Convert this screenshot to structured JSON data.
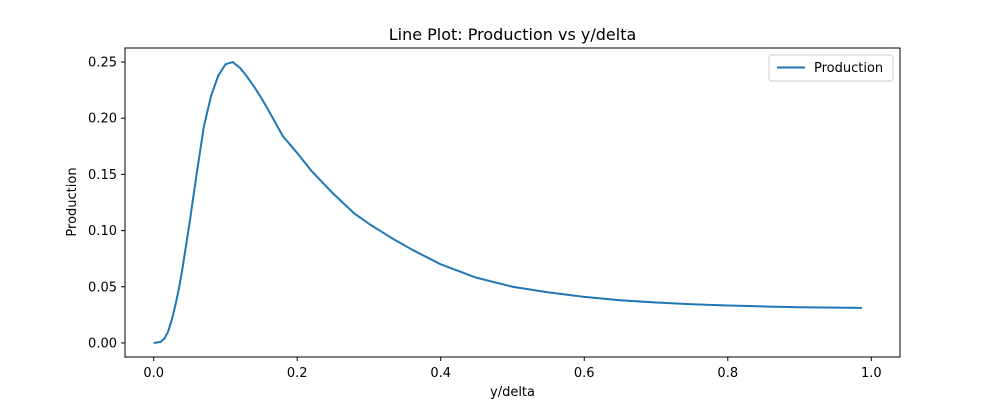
{
  "chart_data": {
    "type": "line",
    "title": "Line Plot: Production vs y/delta",
    "xlabel": "y/delta",
    "ylabel": "Production",
    "xlim": [
      -0.04,
      1.04
    ],
    "ylim": [
      -0.0125,
      0.2625
    ],
    "xticks": [
      0.0,
      0.2,
      0.4,
      0.6,
      0.8,
      1.0
    ],
    "xtick_labels": [
      "0.0",
      "0.2",
      "0.4",
      "0.6",
      "0.8",
      "1.0"
    ],
    "yticks": [
      0.0,
      0.05,
      0.1,
      0.15,
      0.2,
      0.25
    ],
    "ytick_labels": [
      "0.00",
      "0.05",
      "0.10",
      "0.15",
      "0.20",
      "0.25"
    ],
    "grid": false,
    "legend_position": "top-right",
    "colors": {
      "series": "#1f77b4",
      "axes": "#000000",
      "legend_border": "#cccccc"
    },
    "series": [
      {
        "name": "Production",
        "x": [
          0.0,
          0.01,
          0.015,
          0.02,
          0.025,
          0.03,
          0.035,
          0.04,
          0.05,
          0.06,
          0.07,
          0.08,
          0.09,
          0.1,
          0.11,
          0.12,
          0.13,
          0.14,
          0.15,
          0.16,
          0.18,
          0.2,
          0.22,
          0.25,
          0.28,
          0.3,
          0.33,
          0.36,
          0.4,
          0.45,
          0.5,
          0.55,
          0.6,
          0.65,
          0.7,
          0.75,
          0.8,
          0.85,
          0.9,
          0.95,
          0.987
        ],
        "y": [
          0.0,
          0.001,
          0.004,
          0.01,
          0.02,
          0.033,
          0.048,
          0.066,
          0.107,
          0.151,
          0.193,
          0.22,
          0.238,
          0.248,
          0.25,
          0.245,
          0.237,
          0.228,
          0.218,
          0.207,
          0.184,
          0.169,
          0.153,
          0.133,
          0.115,
          0.106,
          0.094,
          0.083,
          0.07,
          0.058,
          0.05,
          0.045,
          0.041,
          0.038,
          0.036,
          0.0345,
          0.0333,
          0.0325,
          0.0318,
          0.0314,
          0.0312
        ]
      }
    ]
  }
}
